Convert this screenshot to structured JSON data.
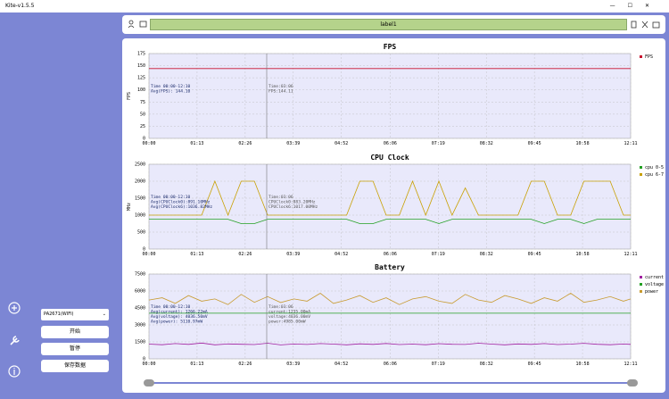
{
  "window": {
    "title": "Kite-v1.5.5"
  },
  "toolbar": {
    "label": "label1"
  },
  "sidebar": {
    "device": "PA2671(WIFI)",
    "buttons": [
      "开始",
      "暂停",
      "保存数据"
    ]
  },
  "chart_data": [
    {
      "type": "line",
      "title": "FPS",
      "y_label": "FPS",
      "x": [
        0,
        20,
        40,
        60,
        80,
        100,
        120,
        140,
        160,
        180,
        200,
        220,
        240,
        260,
        280,
        300,
        320,
        340,
        360,
        380,
        400,
        420,
        440,
        460,
        480,
        500,
        520,
        540,
        560,
        580,
        600,
        620,
        640,
        660,
        680,
        700,
        720,
        731
      ],
      "series": [
        {
          "name": "FPS",
          "color": "#c8102e",
          "values": [
            144,
            144,
            144,
            144,
            144,
            144,
            144,
            144,
            144,
            144,
            144,
            144,
            144,
            144,
            144,
            144,
            144,
            144,
            144,
            144,
            144,
            144,
            144,
            144,
            144,
            144,
            144,
            144,
            144,
            144,
            144,
            144,
            144,
            144,
            144,
            144,
            144,
            144
          ]
        }
      ],
      "xlim": [
        0,
        731
      ],
      "xticks": [
        {
          "value": 0,
          "label": "00:00"
        },
        {
          "value": 73,
          "label": "01:13"
        },
        {
          "value": 146,
          "label": "02:26"
        },
        {
          "value": 219,
          "label": "03:39"
        },
        {
          "value": 292,
          "label": "04:52"
        },
        {
          "value": 366,
          "label": "06:06"
        },
        {
          "value": 439,
          "label": "07:19"
        },
        {
          "value": 512,
          "label": "08:32"
        },
        {
          "value": 585,
          "label": "09:45"
        },
        {
          "value": 658,
          "label": "10:58"
        },
        {
          "value": 731,
          "label": "12:11"
        }
      ],
      "ylim": [
        0,
        175
      ],
      "yticks": [
        0,
        25,
        50,
        75,
        100,
        125,
        150,
        175
      ],
      "grid": true,
      "legend": "right",
      "annotations": {
        "summary": [
          "Time 00:00-12:10",
          "Avg(FPS): 144.10"
        ],
        "cursor": [
          "Time:03:06",
          "FPS:144.11"
        ]
      }
    },
    {
      "type": "line",
      "title": "CPU Clock",
      "y_label": "MHz",
      "x": [
        0,
        20,
        40,
        60,
        80,
        100,
        120,
        140,
        160,
        180,
        200,
        220,
        240,
        260,
        280,
        300,
        320,
        340,
        360,
        380,
        400,
        420,
        440,
        460,
        480,
        500,
        520,
        540,
        560,
        580,
        600,
        620,
        640,
        660,
        680,
        700,
        720,
        731
      ],
      "series": [
        {
          "name": "cpu 0-5",
          "color": "#22a022",
          "values": [
            880,
            880,
            880,
            880,
            880,
            880,
            880,
            750,
            750,
            880,
            880,
            880,
            880,
            880,
            880,
            880,
            750,
            750,
            880,
            880,
            880,
            880,
            750,
            880,
            880,
            880,
            880,
            880,
            880,
            880,
            750,
            880,
            880,
            750,
            880,
            880,
            880,
            880
          ]
        },
        {
          "name": "cpu 6-7",
          "color": "#c8a000",
          "values": [
            1000,
            1000,
            1000,
            1000,
            1000,
            2000,
            1000,
            2000,
            2000,
            1000,
            1000,
            1000,
            1000,
            1000,
            1000,
            1000,
            2000,
            2000,
            1000,
            1000,
            2000,
            1000,
            2000,
            1000,
            1800,
            1000,
            1000,
            1000,
            1000,
            2000,
            2000,
            1000,
            1000,
            2000,
            2000,
            2000,
            1000,
            1000
          ]
        }
      ],
      "xlim": [
        0,
        731
      ],
      "xticks": [
        {
          "value": 0,
          "label": "00:00"
        },
        {
          "value": 73,
          "label": "01:13"
        },
        {
          "value": 146,
          "label": "02:26"
        },
        {
          "value": 219,
          "label": "03:39"
        },
        {
          "value": 292,
          "label": "04:52"
        },
        {
          "value": 366,
          "label": "06:06"
        },
        {
          "value": 439,
          "label": "07:19"
        },
        {
          "value": 512,
          "label": "08:32"
        },
        {
          "value": 585,
          "label": "09:45"
        },
        {
          "value": 658,
          "label": "10:58"
        },
        {
          "value": 731,
          "label": "12:11"
        }
      ],
      "ylim": [
        0,
        2500
      ],
      "yticks": [
        0,
        500,
        1000,
        1500,
        2000,
        2500
      ],
      "grid": true,
      "legend": "right",
      "annotations": {
        "summary": [
          "Time 00:00-12:10",
          "Avg(CPUClock0):891.10MHz",
          "Avg(CPUClock6):1036.82MHz"
        ],
        "cursor": [
          "Time:03:06",
          "CPUClock0:883.20MHz",
          "CPUClock6:1017.00MHz"
        ]
      }
    },
    {
      "type": "line",
      "title": "Battery",
      "y_label": "",
      "x": [
        0,
        20,
        40,
        60,
        80,
        100,
        120,
        140,
        160,
        180,
        200,
        220,
        240,
        260,
        280,
        300,
        320,
        340,
        360,
        380,
        400,
        420,
        440,
        460,
        480,
        500,
        520,
        540,
        560,
        580,
        600,
        620,
        640,
        660,
        680,
        700,
        720,
        731
      ],
      "series": [
        {
          "name": "current",
          "color": "#a020a0",
          "values": [
            1300,
            1250,
            1350,
            1280,
            1400,
            1240,
            1320,
            1290,
            1260,
            1380,
            1235,
            1310,
            1270,
            1350,
            1300,
            1240,
            1330,
            1280,
            1360,
            1260,
            1300,
            1250,
            1340,
            1290,
            1270,
            1380,
            1300,
            1240,
            1320,
            1280,
            1350,
            1260,
            1300,
            1370,
            1290,
            1250,
            1310,
            1280
          ]
        },
        {
          "name": "voltage",
          "color": "#22a022",
          "values": [
            4036,
            4036,
            4036,
            4036,
            4036,
            4036,
            4036,
            4036,
            4036,
            4036,
            4036,
            4036,
            4036,
            4036,
            4036,
            4036,
            4036,
            4036,
            4036,
            4036,
            4036,
            4036,
            4036,
            4036,
            4036,
            4036,
            4036,
            4036,
            4036,
            4036,
            4036,
            4036,
            4036,
            4036,
            4036,
            4036,
            4036,
            4036
          ]
        },
        {
          "name": "power",
          "color": "#c89b30",
          "values": [
            5200,
            5400,
            4900,
            5600,
            5100,
            5300,
            4800,
            5700,
            5000,
            5500,
            4985,
            5300,
            5100,
            5800,
            4900,
            5200,
            5600,
            5000,
            5400,
            4800,
            5300,
            5500,
            5100,
            4900,
            5700,
            5200,
            5000,
            5600,
            5300,
            4900,
            5400,
            5100,
            5800,
            5000,
            5200,
            5500,
            5100,
            5300
          ]
        }
      ],
      "xlim": [
        0,
        731
      ],
      "xticks": [
        {
          "value": 0,
          "label": "00:00"
        },
        {
          "value": 73,
          "label": "01:13"
        },
        {
          "value": 146,
          "label": "02:26"
        },
        {
          "value": 219,
          "label": "03:39"
        },
        {
          "value": 292,
          "label": "04:52"
        },
        {
          "value": 366,
          "label": "06:06"
        },
        {
          "value": 439,
          "label": "07:19"
        },
        {
          "value": 512,
          "label": "08:32"
        },
        {
          "value": 585,
          "label": "09:45"
        },
        {
          "value": 658,
          "label": "10:58"
        },
        {
          "value": 731,
          "label": "12:11"
        }
      ],
      "ylim": [
        0,
        7500
      ],
      "yticks": [
        0,
        1500,
        3000,
        4500,
        6000,
        7500
      ],
      "grid": true,
      "legend": "right",
      "annotations": {
        "summary": [
          "Time 00:00-12:10",
          "Avg(current): 1266.22mA",
          "Avg(voltage): 4036.50mV",
          "Avg(power): 5110.97mW"
        ],
        "cursor": [
          "Time:03:06",
          "current:1235.00mA",
          "voltage:4036.00mV",
          "power:4985.00mW"
        ]
      }
    }
  ]
}
